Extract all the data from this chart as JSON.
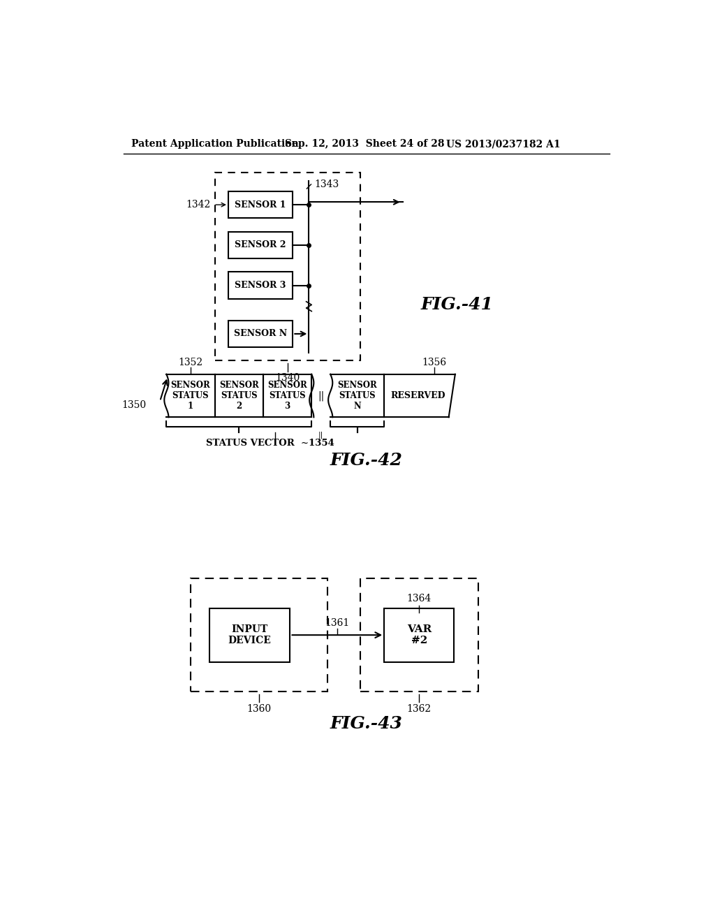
{
  "header_left": "Patent Application Publication",
  "header_mid": "Sep. 12, 2013  Sheet 24 of 28",
  "header_right": "US 2013/0237182 A1",
  "fig41_label": "FIG.-41",
  "fig42_label": "FIG.-42",
  "fig43_label": "FIG.-43",
  "fig41_outer_label": "1340",
  "fig41_bus_label": "1343",
  "fig41_arrow_label": "1342",
  "sensors": [
    "SENSOR 1",
    "SENSOR 2",
    "SENSOR 3",
    "SENSOR N"
  ],
  "fig42_label_1350": "1350",
  "fig42_label_1352": "1352",
  "fig42_label_1356": "1356",
  "fig42_label_1354": "1354",
  "fig42_cells": [
    "SENSOR\nSTATUS\n1",
    "SENSOR\nSTATUS\n2",
    "SENSOR\nSTATUS\n3",
    "SENSOR\nSTATUS\nN",
    "RESERVED"
  ],
  "status_vector_text": "STATUS VECTOR",
  "fig43_label_1360": "1360",
  "fig43_label_1361": "1361",
  "fig43_label_1362": "1362",
  "fig43_label_1364": "1364",
  "fig43_input_text": "INPUT\nDEVICE",
  "fig43_var_text": "VAR\n#2",
  "bg_color": "#ffffff",
  "fg_color": "#000000"
}
